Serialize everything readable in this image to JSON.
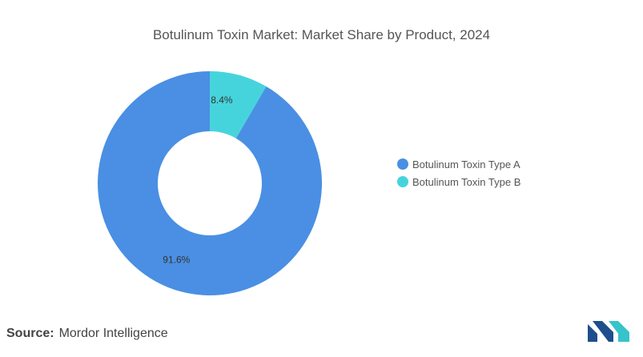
{
  "chart_data": {
    "type": "pie",
    "title": "Botulinum Toxin Market: Market Share by Product, 2024",
    "categories": [
      "Botulinum Toxin Type A",
      "Botulinum Toxin Type B"
    ],
    "values": [
      91.6,
      8.4
    ],
    "labels": [
      "91.6%",
      "8.4%"
    ],
    "colors": [
      "#4a8fe3",
      "#46d4dc"
    ],
    "legend_position": "right",
    "donut": true
  },
  "source": {
    "label": "Source:",
    "text": "Mordor Intelligence"
  },
  "logo": {
    "colors": [
      "#1e4f8c",
      "#36c3c9"
    ]
  }
}
